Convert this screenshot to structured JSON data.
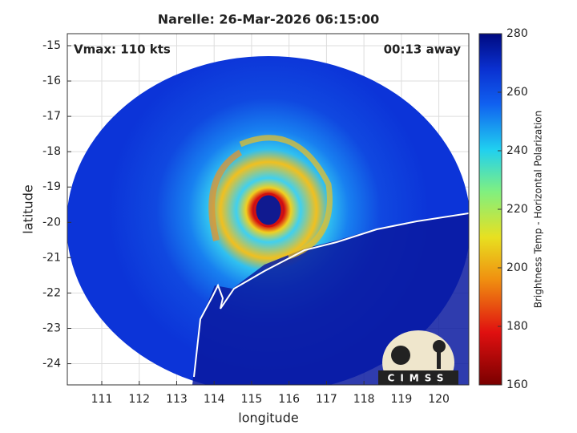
{
  "map": {
    "title": "Narelle: 26-Mar-2026 06:15:00",
    "annotation_left": "Vmax: 110 kts",
    "annotation_right": "00:13 away",
    "xlabel": "longitude",
    "ylabel": "latitude",
    "xlim": [
      110.08,
      120.8
    ],
    "ylim": [
      -24.6,
      -14.66
    ],
    "xticks": [
      111,
      112,
      113,
      114,
      115,
      116,
      117,
      118,
      119,
      120
    ],
    "yticks": [
      -15,
      -16,
      -17,
      -18,
      -19,
      -20,
      -21,
      -22,
      -23,
      -24
    ],
    "grid": true,
    "colorbar": {
      "label": "Brightness Temp - Horizontal Polarization",
      "lim": [
        160,
        280
      ],
      "ticks": [
        160,
        180,
        200,
        220,
        240,
        260,
        280
      ]
    },
    "logo": "CIMSS"
  }
}
